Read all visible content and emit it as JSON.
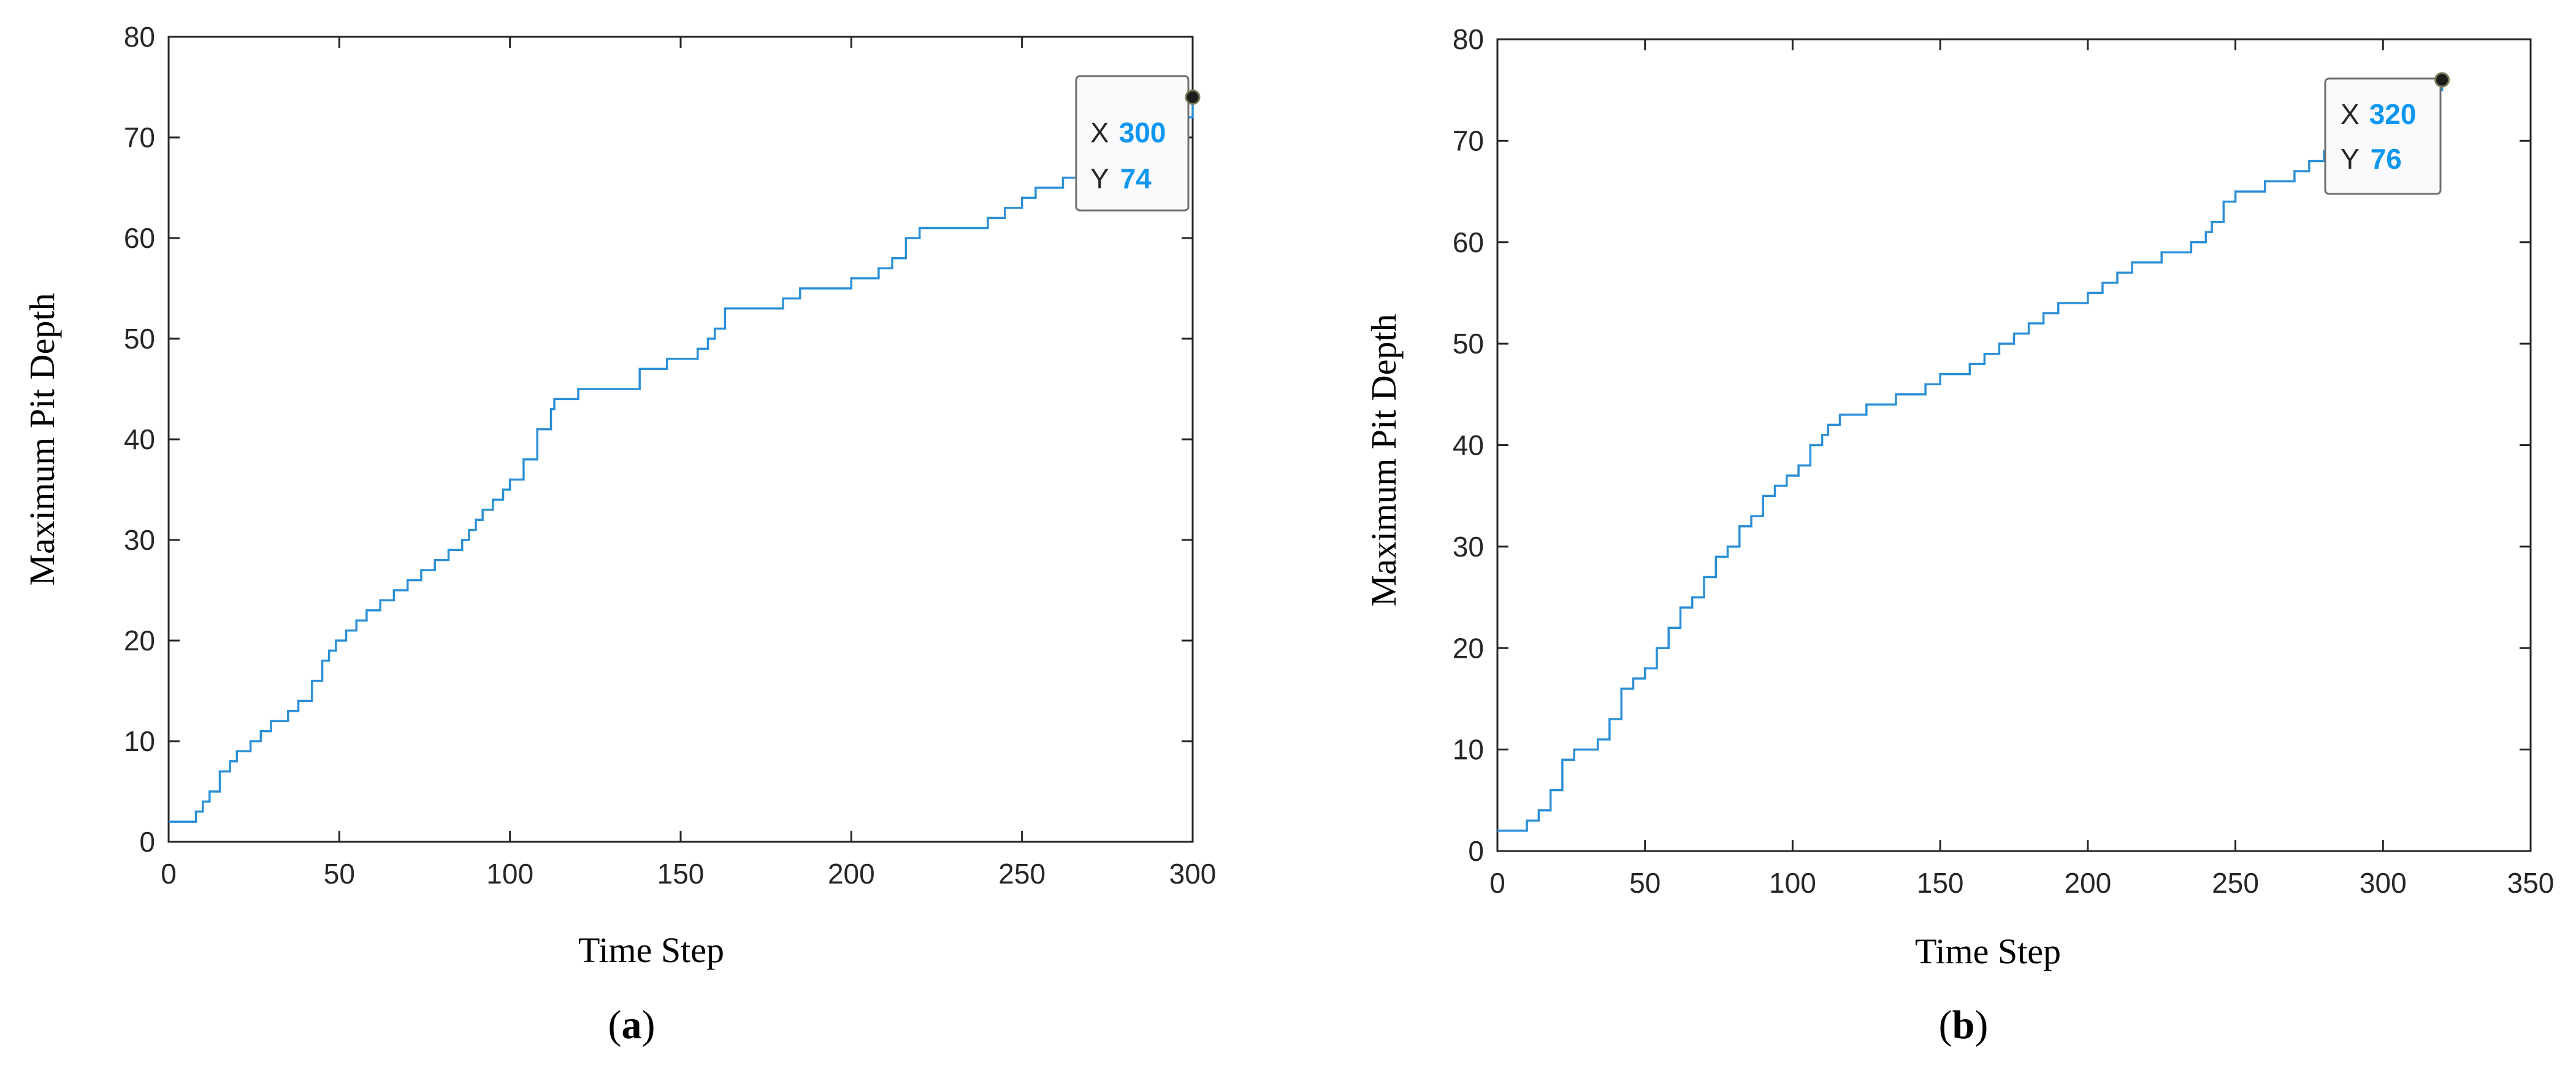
{
  "chart_data": [
    {
      "type": "line",
      "panel_label": "a",
      "xlabel": "Time Step",
      "ylabel": "Maximum Pit Depth",
      "xlim": [
        0,
        300
      ],
      "ylim": [
        0,
        80
      ],
      "xticks": [
        0,
        50,
        100,
        150,
        200,
        250,
        300
      ],
      "yticks": [
        0,
        10,
        20,
        30,
        40,
        50,
        60,
        70,
        80
      ],
      "grid": false,
      "line_color": "#2b8fd6",
      "series": [
        {
          "x": [
            0,
            6,
            8,
            10,
            12,
            15,
            18,
            20,
            24,
            27,
            30,
            35,
            38,
            42,
            45,
            47,
            49,
            52,
            55,
            58,
            62,
            66,
            70,
            74,
            78,
            82,
            86,
            88,
            90,
            92,
            95,
            98,
            100,
            104,
            108,
            112,
            113,
            116,
            120,
            125,
            135,
            138,
            140,
            146,
            150,
            155,
            158,
            160,
            163,
            165,
            170,
            180,
            185,
            195,
            200,
            205,
            208,
            212,
            216,
            220,
            235,
            240,
            245,
            250,
            254,
            258,
            262,
            268,
            272,
            280,
            290,
            300
          ],
          "y": [
            2,
            2,
            3,
            4,
            5,
            7,
            8,
            9,
            10,
            11,
            12,
            13,
            14,
            16,
            18,
            19,
            20,
            21,
            22,
            23,
            24,
            25,
            26,
            27,
            28,
            29,
            30,
            31,
            32,
            33,
            34,
            35,
            36,
            38,
            41,
            43,
            44,
            44,
            45,
            45,
            45,
            47,
            47,
            48,
            48,
            49,
            50,
            51,
            53,
            53,
            53,
            54,
            55,
            55,
            56,
            56,
            57,
            58,
            60,
            61,
            61,
            62,
            63,
            64,
            65,
            65,
            66,
            67,
            68,
            70,
            72,
            74
          ]
        }
      ],
      "datatip": {
        "x_label": "X",
        "x_value": "300",
        "y_label": "Y",
        "y_value": "74",
        "x": 300,
        "y": 74
      }
    },
    {
      "type": "line",
      "panel_label": "b",
      "xlabel": "Time Step",
      "ylabel": "Maximum Pit Depth",
      "xlim": [
        0,
        350
      ],
      "ylim": [
        0,
        80
      ],
      "xticks": [
        0,
        50,
        100,
        150,
        200,
        250,
        300,
        350
      ],
      "yticks": [
        0,
        10,
        20,
        30,
        40,
        50,
        60,
        70,
        80
      ],
      "grid": false,
      "line_color": "#2b8fd6",
      "series": [
        {
          "x": [
            0,
            5,
            10,
            14,
            18,
            22,
            26,
            30,
            34,
            38,
            42,
            46,
            50,
            54,
            58,
            62,
            66,
            70,
            74,
            78,
            82,
            86,
            90,
            94,
            98,
            102,
            106,
            110,
            112,
            116,
            125,
            130,
            135,
            140,
            145,
            150,
            155,
            160,
            165,
            170,
            175,
            180,
            185,
            190,
            195,
            200,
            205,
            210,
            215,
            220,
            225,
            230,
            235,
            240,
            242,
            246,
            250,
            255,
            260,
            270,
            275,
            280,
            290,
            300,
            310,
            320
          ],
          "y": [
            2,
            2,
            3,
            4,
            6,
            9,
            10,
            10,
            11,
            13,
            16,
            17,
            18,
            20,
            22,
            24,
            25,
            27,
            29,
            30,
            32,
            33,
            35,
            36,
            37,
            38,
            40,
            41,
            42,
            43,
            44,
            44,
            45,
            45,
            46,
            47,
            47,
            48,
            49,
            50,
            51,
            52,
            53,
            54,
            54,
            55,
            56,
            57,
            58,
            58,
            59,
            59,
            60,
            61,
            62,
            64,
            65,
            65,
            66,
            67,
            68,
            69,
            71,
            73,
            75,
            76
          ]
        }
      ],
      "datatip": {
        "x_label": "X",
        "x_value": "320",
        "y_label": "Y",
        "y_value": "76",
        "x": 320,
        "y": 76
      }
    }
  ]
}
